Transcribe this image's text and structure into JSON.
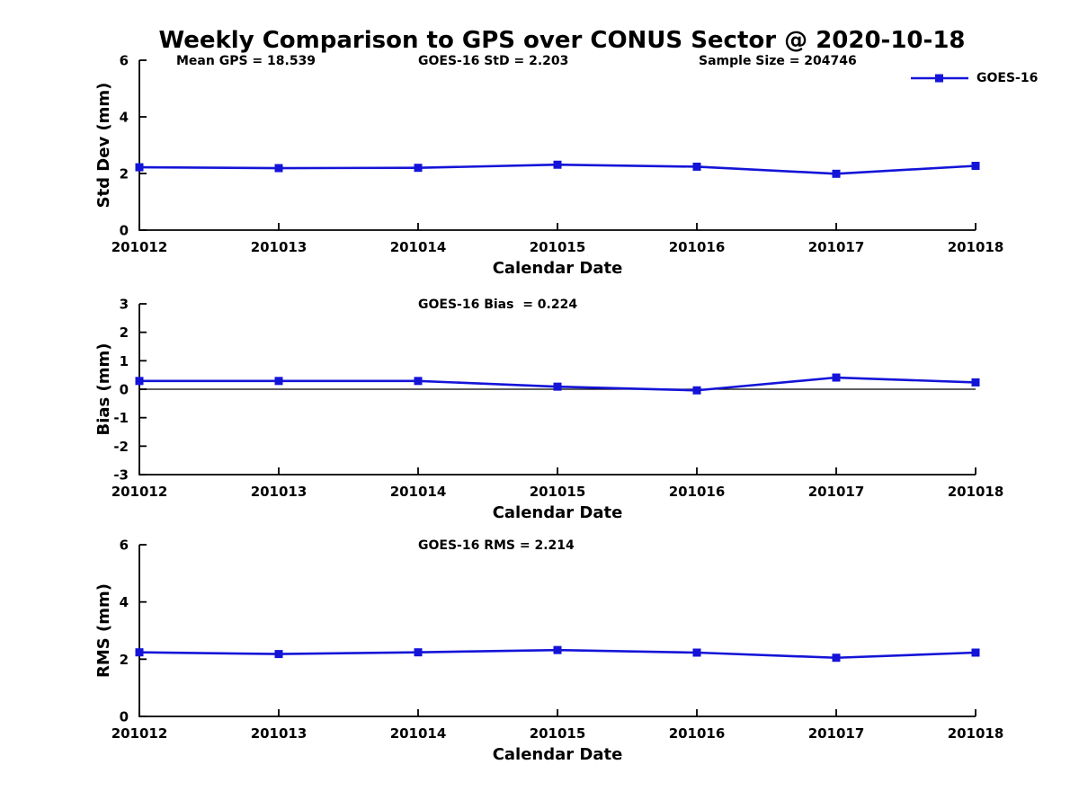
{
  "figure": {
    "title": "Weekly Comparison to GPS over CONUS Sector @ 2020-10-18",
    "background": "#ffffff",
    "line_color": "#1414d8",
    "axis_color": "#000000",
    "annotations": {
      "mean_gps": "Mean GPS = 18.539",
      "std": "GOES-16 StD = 2.203",
      "sample_size": "Sample Size = 204746",
      "bias": "GOES-16 Bias  = 0.224",
      "rms": "GOES-16 RMS = 2.214"
    },
    "legend": {
      "label": "GOES-16",
      "position": "top-right",
      "marker": "filled-square",
      "color": "#1414d8"
    }
  },
  "chart_data": [
    {
      "type": "line",
      "title": "",
      "categories": [
        "201012",
        "201013",
        "201014",
        "201015",
        "201016",
        "201017",
        "201018"
      ],
      "series": [
        {
          "name": "GOES-16",
          "values": [
            2.22,
            2.19,
            2.2,
            2.31,
            2.24,
            1.99,
            2.27
          ]
        }
      ],
      "xlabel": "Calendar Date",
      "ylabel": "Std Dev (mm)",
      "ylim": [
        0,
        6
      ],
      "yticks": [
        0,
        2,
        4,
        6
      ],
      "grid": false,
      "zero_line": false,
      "marker": "square"
    },
    {
      "type": "line",
      "title": "",
      "categories": [
        "201012",
        "201013",
        "201014",
        "201015",
        "201016",
        "201017",
        "201018"
      ],
      "series": [
        {
          "name": "GOES-16",
          "values": [
            0.29,
            0.29,
            0.29,
            0.09,
            -0.04,
            0.41,
            0.24
          ]
        }
      ],
      "xlabel": "Calendar Date",
      "ylabel": "Bias (mm)",
      "ylim": [
        -3,
        3
      ],
      "yticks": [
        -3,
        -2,
        -1,
        0,
        1,
        2,
        3
      ],
      "grid": false,
      "zero_line": true,
      "marker": "square"
    },
    {
      "type": "line",
      "title": "",
      "categories": [
        "201012",
        "201013",
        "201014",
        "201015",
        "201016",
        "201017",
        "201018"
      ],
      "series": [
        {
          "name": "GOES-16",
          "values": [
            2.24,
            2.18,
            2.24,
            2.32,
            2.23,
            2.05,
            2.23
          ]
        }
      ],
      "xlabel": "Calendar Date",
      "ylabel": "RMS (mm)",
      "ylim": [
        0,
        6
      ],
      "yticks": [
        0,
        2,
        4,
        6
      ],
      "grid": false,
      "zero_line": false,
      "marker": "square"
    }
  ]
}
